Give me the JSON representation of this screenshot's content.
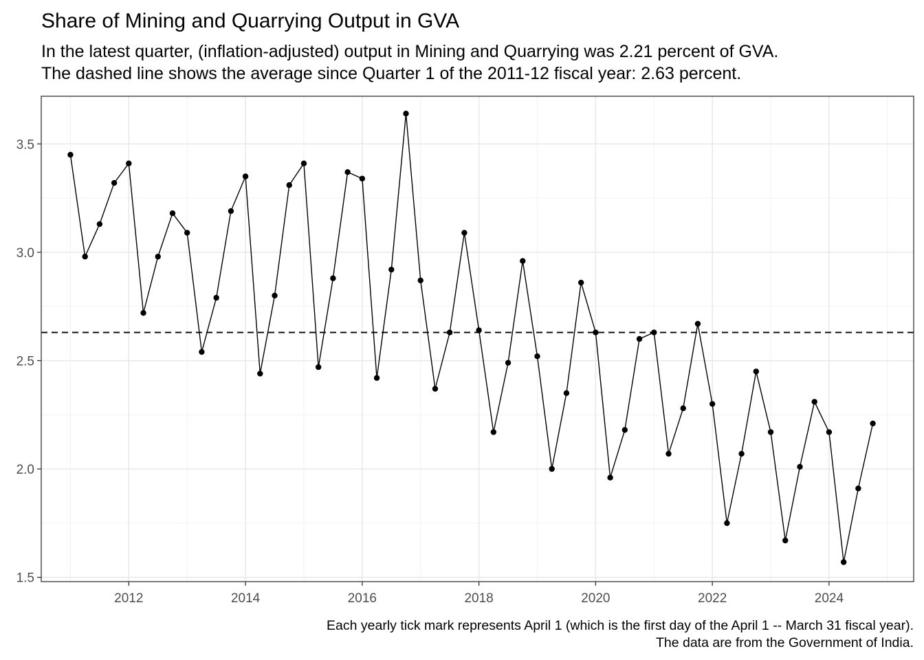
{
  "chart_data": {
    "type": "line",
    "title": "Share of Mining and Quarrying Output in GVA",
    "subtitle_lines": [
      "In the latest quarter, (inflation-adjusted) output in Mining and Quarrying was 2.21 percent of GVA.",
      "The dashed line shows the average since Quarter 1 of the 2011-12 fiscal year: 2.63 percent."
    ],
    "caption_lines": [
      "Each yearly tick mark represents April 1 (which is the first day of the April 1 -- March 31 fiscal year).",
      "The data are from the Government of India."
    ],
    "xlabel": "",
    "ylabel": "",
    "x_ticks": [
      2012,
      2014,
      2016,
      2018,
      2020,
      2022,
      2024
    ],
    "y_ticks": [
      1.5,
      2.0,
      2.5,
      3.0,
      3.5
    ],
    "y_tick_labels": [
      "1.5",
      "2.0",
      "2.5",
      "3.0",
      "3.5"
    ],
    "xlim": [
      2010.5,
      2025.45
    ],
    "ylim": [
      1.48,
      3.72
    ],
    "average": 2.63,
    "grid": true,
    "legend": "none",
    "series": [
      {
        "x": [
          2011.0,
          2011.25,
          2011.5,
          2011.75,
          2012.0,
          2012.25,
          2012.5,
          2012.75,
          2013.0,
          2013.25,
          2013.5,
          2013.75,
          2014.0,
          2014.25,
          2014.5,
          2014.75,
          2015.0,
          2015.25,
          2015.5,
          2015.75,
          2016.0,
          2016.25,
          2016.5,
          2016.75,
          2017.0,
          2017.25,
          2017.5,
          2017.75,
          2018.0,
          2018.25,
          2018.5,
          2018.75,
          2019.0,
          2019.25,
          2019.5,
          2019.75,
          2020.0,
          2020.25,
          2020.5,
          2020.75,
          2021.0,
          2021.25,
          2021.5,
          2021.75,
          2022.0,
          2022.25,
          2022.5,
          2022.75,
          2023.0,
          2023.25,
          2023.5,
          2023.75,
          2024.0,
          2024.25,
          2024.5,
          2024.75
        ],
        "values": [
          3.45,
          2.98,
          3.13,
          3.32,
          3.41,
          2.72,
          2.98,
          3.18,
          3.09,
          2.54,
          2.79,
          3.19,
          3.35,
          2.44,
          2.8,
          3.31,
          3.41,
          2.47,
          2.88,
          3.37,
          3.34,
          2.42,
          2.92,
          3.64,
          2.87,
          2.37,
          2.63,
          3.09,
          2.64,
          2.17,
          2.49,
          2.96,
          2.52,
          2.0,
          2.35,
          2.86,
          2.63,
          1.96,
          2.18,
          2.6,
          2.63,
          2.07,
          2.28,
          2.67,
          2.3,
          1.75,
          2.07,
          2.45,
          2.17,
          1.67,
          2.01,
          2.31,
          2.17,
          1.57,
          1.91,
          2.21
        ]
      }
    ]
  }
}
